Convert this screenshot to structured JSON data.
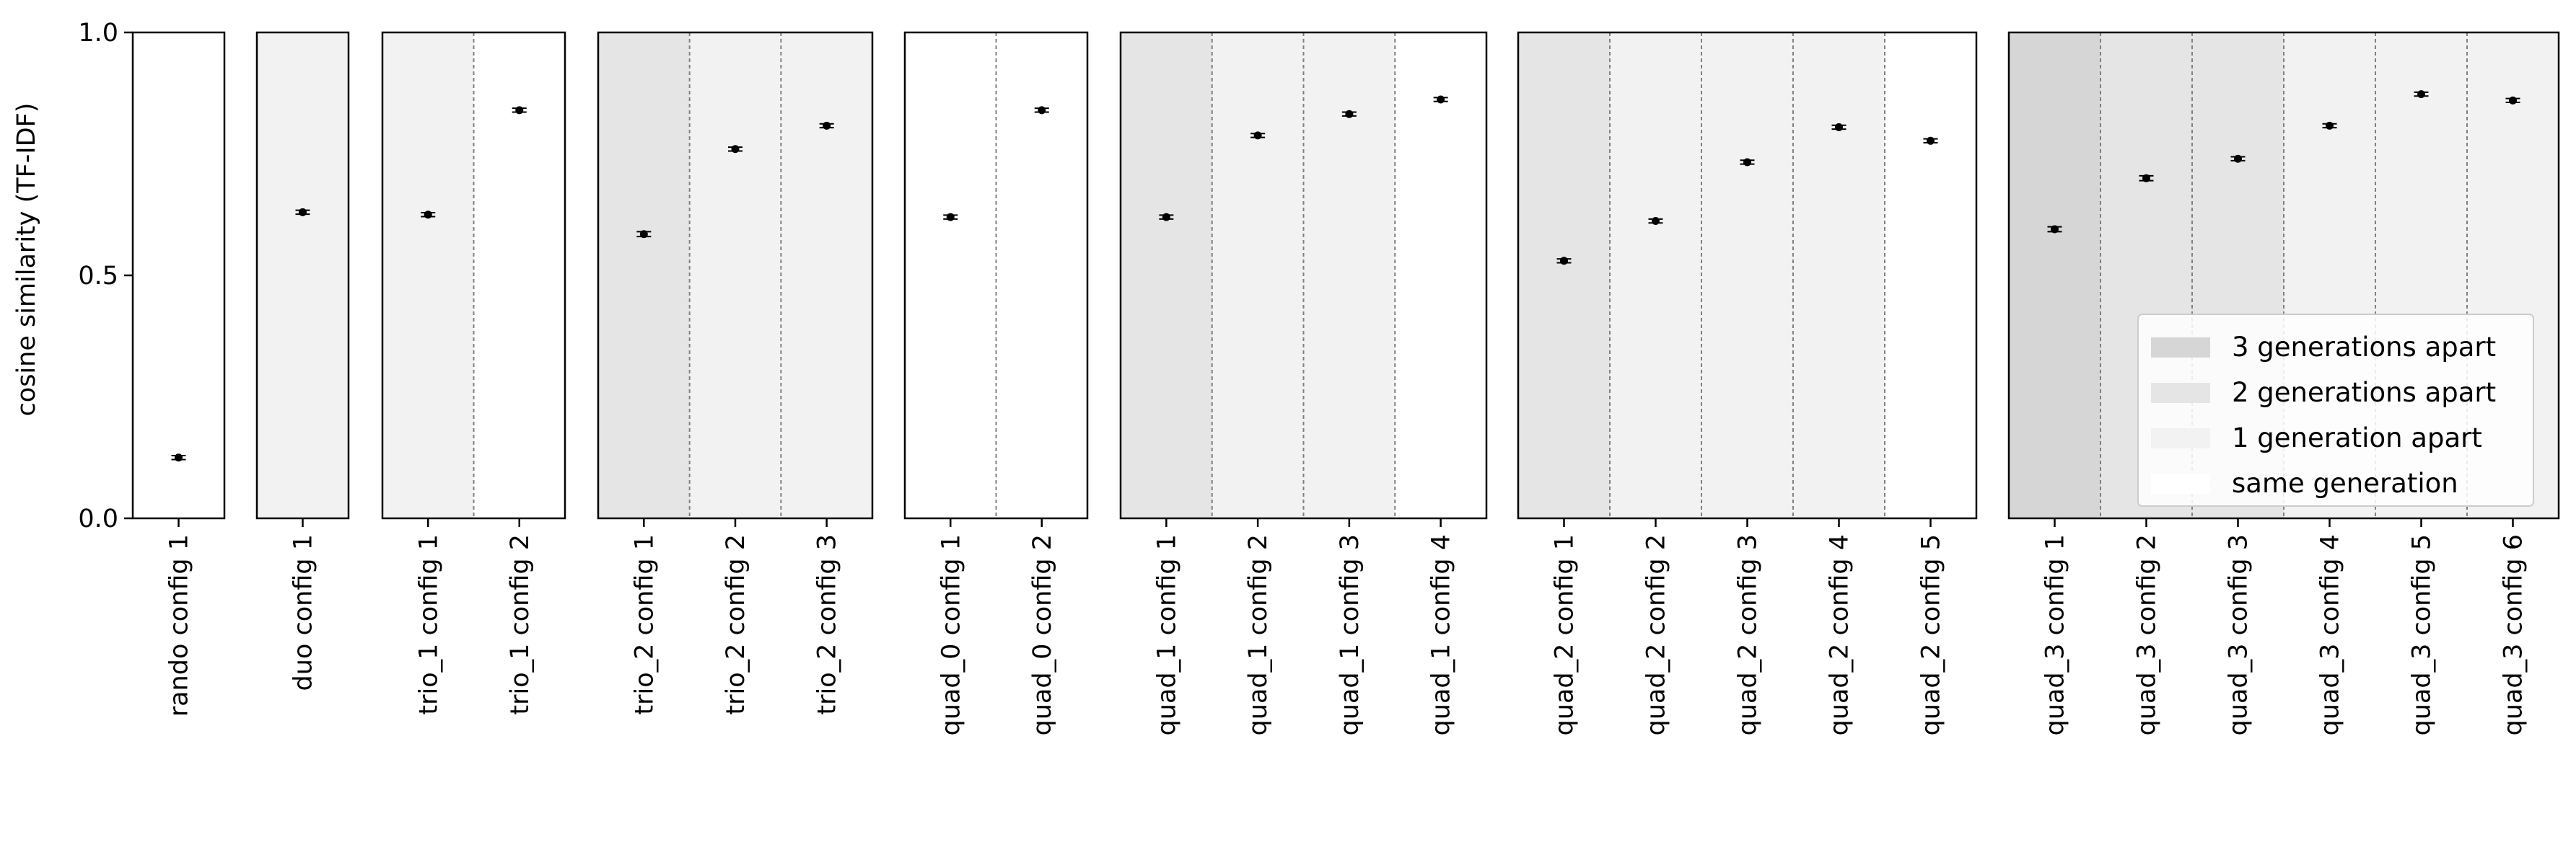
{
  "chart_data": {
    "type": "scatter",
    "ylabel": "cosine similarity (TF-IDF)",
    "ylim": [
      0.0,
      1.0
    ],
    "yticks": [
      0.0,
      0.5,
      1.0
    ],
    "ytick_labels": [
      "0.0",
      "0.5",
      "1.0"
    ],
    "grid": false,
    "legend": {
      "placement": "lower-right of last panel",
      "entries": [
        {
          "label": "3 generations apart",
          "color": "#d6d6d6"
        },
        {
          "label": "2 generations apart",
          "color": "#e5e5e5"
        },
        {
          "label": "1 generation apart",
          "color": "#f2f2f2"
        },
        {
          "label": "same generation",
          "color": "#ffffff"
        }
      ]
    },
    "marker_color": "#000000",
    "panels": [
      {
        "configs": [
          {
            "label": "rando config 1",
            "value": 0.125,
            "err": 0.004,
            "gen": 0
          }
        ]
      },
      {
        "configs": [
          {
            "label": "duo config 1",
            "value": 0.63,
            "err": 0.004,
            "gen": 1
          }
        ]
      },
      {
        "configs": [
          {
            "label": "trio_1 config 1",
            "value": 0.625,
            "err": 0.004,
            "gen": 1
          },
          {
            "label": "trio_1 config 2",
            "value": 0.84,
            "err": 0.004,
            "gen": 0
          }
        ]
      },
      {
        "configs": [
          {
            "label": "trio_2 config 1",
            "value": 0.585,
            "err": 0.005,
            "gen": 2
          },
          {
            "label": "trio_2 config 2",
            "value": 0.76,
            "err": 0.004,
            "gen": 1
          },
          {
            "label": "trio_2 config 3",
            "value": 0.808,
            "err": 0.004,
            "gen": 1
          }
        ]
      },
      {
        "configs": [
          {
            "label": "quad_0 config 1",
            "value": 0.62,
            "err": 0.004,
            "gen": 0
          },
          {
            "label": "quad_0 config 2",
            "value": 0.84,
            "err": 0.004,
            "gen": 0
          }
        ]
      },
      {
        "configs": [
          {
            "label": "quad_1 config 1",
            "value": 0.62,
            "err": 0.004,
            "gen": 2
          },
          {
            "label": "quad_1 config 2",
            "value": 0.788,
            "err": 0.004,
            "gen": 1
          },
          {
            "label": "quad_1 config 3",
            "value": 0.832,
            "err": 0.004,
            "gen": 1
          },
          {
            "label": "quad_1 config 4",
            "value": 0.862,
            "err": 0.004,
            "gen": 0
          }
        ]
      },
      {
        "configs": [
          {
            "label": "quad_2 config 1",
            "value": 0.53,
            "err": 0.004,
            "gen": 2
          },
          {
            "label": "quad_2 config 2",
            "value": 0.612,
            "err": 0.004,
            "gen": 1
          },
          {
            "label": "quad_2 config 3",
            "value": 0.733,
            "err": 0.004,
            "gen": 1
          },
          {
            "label": "quad_2 config 4",
            "value": 0.805,
            "err": 0.004,
            "gen": 1
          },
          {
            "label": "quad_2 config 5",
            "value": 0.777,
            "err": 0.004,
            "gen": 0
          }
        ]
      },
      {
        "configs": [
          {
            "label": "quad_3 config 1",
            "value": 0.595,
            "err": 0.005,
            "gen": 3
          },
          {
            "label": "quad_3 config 2",
            "value": 0.7,
            "err": 0.005,
            "gen": 2
          },
          {
            "label": "quad_3 config 3",
            "value": 0.74,
            "err": 0.004,
            "gen": 2
          },
          {
            "label": "quad_3 config 4",
            "value": 0.808,
            "err": 0.004,
            "gen": 1
          },
          {
            "label": "quad_3 config 5",
            "value": 0.873,
            "err": 0.004,
            "gen": 1
          },
          {
            "label": "quad_3 config 6",
            "value": 0.86,
            "err": 0.004,
            "gen": 1
          }
        ]
      }
    ]
  }
}
